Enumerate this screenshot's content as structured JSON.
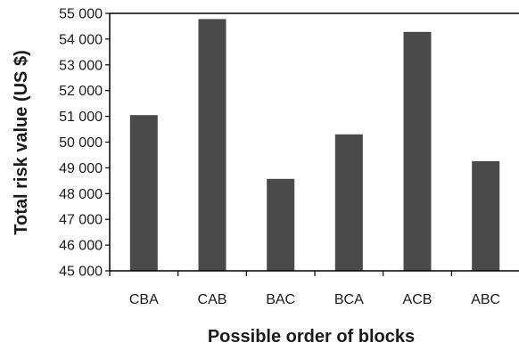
{
  "chart_data": {
    "type": "bar",
    "title": "",
    "xlabel": "Possible order of blocks",
    "ylabel": "Total risk value (US $)",
    "categories": [
      "CBA",
      "CAB",
      "BAC",
      "BCA",
      "ACB",
      "ABC"
    ],
    "values": [
      51050,
      54780,
      48570,
      50300,
      54280,
      49260
    ],
    "ylim": [
      45000,
      55000
    ],
    "yticks": [
      45000,
      46000,
      47000,
      48000,
      49000,
      50000,
      51000,
      52000,
      53000,
      54000,
      55000
    ],
    "ytick_labels": [
      "45 000",
      "46 000",
      "47 000",
      "48 000",
      "49 000",
      "50 000",
      "51 000",
      "52 000",
      "53 000",
      "54 000",
      "55 000"
    ],
    "bar_color": "#4a4a4a",
    "axis_color": "#000000",
    "grid": false,
    "legend": "none"
  }
}
